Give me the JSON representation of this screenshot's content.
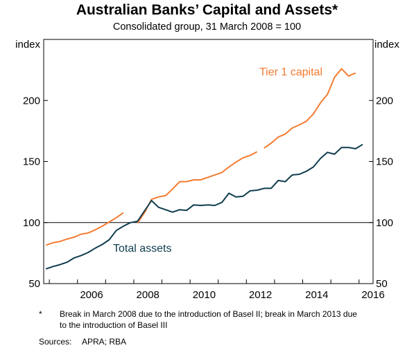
{
  "chart_data": {
    "type": "line",
    "title": "Australian Banks’ Capital and Assets*",
    "subtitle": "Consolidated group, 31 March 2008 = 100",
    "ylabel_left": "index",
    "ylabel_right": "index",
    "ylim": [
      50,
      250
    ],
    "yticks": [
      50,
      100,
      150,
      200
    ],
    "xlim": [
      2004.8,
      2016.5
    ],
    "xticks": [
      2006,
      2008,
      2010,
      2012,
      2014,
      2016
    ],
    "reference_line": 100,
    "series": [
      {
        "name": "Tier 1 capital",
        "color": "#f47b30",
        "points": [
          [
            2004.88,
            81.5
          ],
          [
            2005.13,
            83.5
          ],
          [
            2005.38,
            84.5
          ],
          [
            2005.63,
            86.5
          ],
          [
            2005.88,
            88.0
          ],
          [
            2006.13,
            90.5
          ],
          [
            2006.38,
            91.5
          ],
          [
            2006.63,
            94.0
          ],
          [
            2006.88,
            97.0
          ],
          [
            2007.13,
            100.5
          ],
          [
            2007.38,
            104.0
          ],
          [
            2007.63,
            108.0
          ],
          null,
          [
            2008.13,
            99.5
          ],
          [
            2008.38,
            108.0
          ],
          [
            2008.63,
            119.0
          ],
          [
            2008.88,
            121.0
          ],
          [
            2009.13,
            122.0
          ],
          [
            2009.38,
            127.5
          ],
          [
            2009.63,
            133.5
          ],
          [
            2009.88,
            133.5
          ],
          [
            2010.13,
            135.0
          ],
          [
            2010.38,
            135.0
          ],
          [
            2010.63,
            137.0
          ],
          [
            2010.88,
            139.0
          ],
          [
            2011.13,
            141.0
          ],
          [
            2011.38,
            145.5
          ],
          [
            2011.63,
            149.5
          ],
          [
            2011.88,
            153.0
          ],
          [
            2012.13,
            155.0
          ],
          [
            2012.38,
            158.0
          ],
          null,
          [
            2012.63,
            161.0
          ],
          [
            2012.88,
            165.0
          ],
          [
            2013.13,
            170.0
          ],
          [
            2013.38,
            172.5
          ],
          [
            2013.63,
            177.5
          ],
          [
            2013.88,
            180.0
          ],
          [
            2014.13,
            183.0
          ],
          [
            2014.38,
            189.0
          ],
          [
            2014.63,
            198.0
          ],
          [
            2014.88,
            205.0
          ],
          [
            2015.13,
            219.0
          ],
          [
            2015.38,
            226.0
          ],
          [
            2015.63,
            220.0
          ],
          [
            2015.88,
            222.5
          ]
        ]
      },
      {
        "name": "Total assets",
        "color": "#0e3c4e",
        "points": [
          [
            2004.88,
            62.0
          ],
          [
            2005.13,
            64.0
          ],
          [
            2005.38,
            65.5
          ],
          [
            2005.63,
            67.5
          ],
          [
            2005.88,
            71.0
          ],
          [
            2006.13,
            73.0
          ],
          [
            2006.38,
            75.5
          ],
          [
            2006.63,
            79.0
          ],
          [
            2006.88,
            82.0
          ],
          [
            2007.13,
            86.0
          ],
          [
            2007.38,
            93.5
          ],
          [
            2007.63,
            97.0
          ],
          [
            2007.88,
            100.0
          ],
          [
            2008.13,
            101.0
          ],
          [
            2008.38,
            109.5
          ],
          [
            2008.63,
            118.0
          ],
          [
            2008.88,
            112.5
          ],
          [
            2009.13,
            110.5
          ],
          [
            2009.38,
            108.5
          ],
          [
            2009.63,
            110.5
          ],
          [
            2009.88,
            110.0
          ],
          [
            2010.13,
            114.5
          ],
          [
            2010.38,
            114.0
          ],
          [
            2010.63,
            114.5
          ],
          [
            2010.88,
            114.0
          ],
          [
            2011.13,
            116.5
          ],
          [
            2011.38,
            124.0
          ],
          [
            2011.63,
            121.0
          ],
          [
            2011.88,
            121.5
          ],
          [
            2012.13,
            126.0
          ],
          [
            2012.38,
            126.5
          ],
          [
            2012.63,
            128.0
          ],
          [
            2012.88,
            128.0
          ],
          [
            2013.13,
            134.5
          ],
          [
            2013.38,
            133.5
          ],
          [
            2013.63,
            139.0
          ],
          [
            2013.88,
            139.5
          ],
          [
            2014.13,
            142.0
          ],
          [
            2014.38,
            145.5
          ],
          [
            2014.63,
            152.5
          ],
          [
            2014.88,
            157.5
          ],
          [
            2015.13,
            156.0
          ],
          [
            2015.38,
            161.5
          ],
          [
            2015.63,
            161.5
          ],
          [
            2015.88,
            160.5
          ],
          [
            2016.13,
            164.0
          ]
        ]
      }
    ],
    "annotations": [
      {
        "text": "Tier 1 capital",
        "color": "#f47b30"
      },
      {
        "text": "Total assets",
        "color": "#0e3c4e"
      }
    ]
  },
  "footnote": {
    "marker": "*",
    "text": "Break in March 2008 due to the introduction of Basel II; break in March 2013 due to the introduction of Basel III"
  },
  "sources": {
    "label": "Sources:",
    "text": "APRA; RBA"
  }
}
